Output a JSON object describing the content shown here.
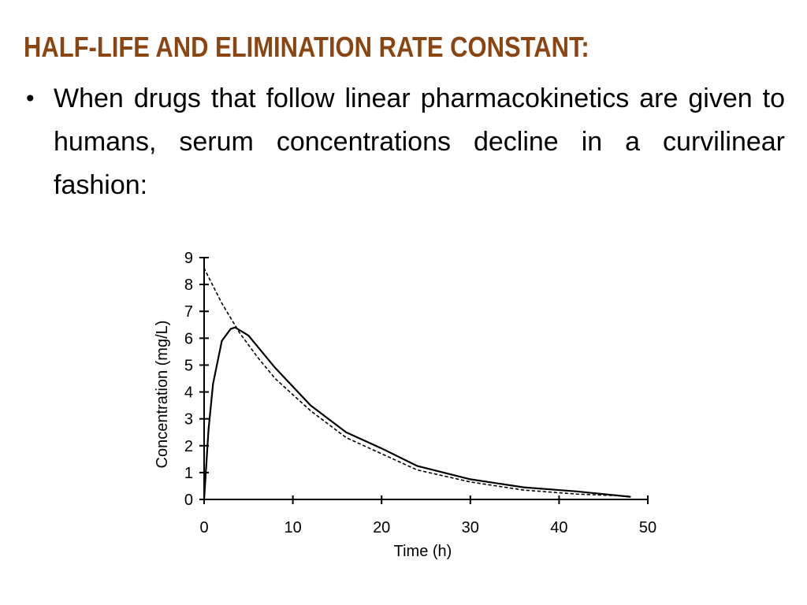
{
  "slide": {
    "title": "HALF-LIFE AND ELIMINATION RATE CONSTANT:",
    "bullet_symbol": "•",
    "bullet_text": "When drugs that follow linear pharmacokinetics are given to humans, serum concentrations decline in a curvilinear fashion:",
    "colors": {
      "title": "#8B4513",
      "text": "#000000",
      "background": "#ffffff"
    }
  },
  "chart_data": {
    "type": "line",
    "title": "",
    "xlabel": "Time (h)",
    "ylabel": "Concentration (mg/L)",
    "xlim": [
      0,
      50
    ],
    "ylim": [
      0,
      9
    ],
    "x_ticks": [
      0,
      10,
      20,
      30,
      40,
      50
    ],
    "x_tick_labels": [
      "0",
      "10",
      "20",
      "30",
      "40",
      "50"
    ],
    "y_ticks": [
      0,
      1,
      2,
      3,
      4,
      5,
      6,
      7,
      8,
      9
    ],
    "y_tick_labels": [
      "0",
      "1",
      "2",
      "3",
      "4",
      "5",
      "6",
      "7",
      "8",
      "9"
    ],
    "grid": false,
    "legend": "none",
    "series": [
      {
        "style": "solid",
        "x": [
          0,
          0.5,
          1,
          2,
          3,
          3.5,
          5,
          8,
          12,
          16,
          20,
          24,
          30,
          36,
          42,
          48
        ],
        "y": [
          0,
          2.6,
          4.3,
          5.9,
          6.35,
          6.4,
          6.1,
          4.9,
          3.5,
          2.5,
          1.9,
          1.25,
          0.75,
          0.45,
          0.3,
          0.1
        ]
      },
      {
        "style": "dashed",
        "x": [
          0,
          2,
          4,
          6,
          8,
          10,
          12,
          16,
          20,
          24,
          30,
          36,
          42,
          48
        ],
        "y": [
          8.6,
          7.3,
          6.2,
          5.3,
          4.5,
          3.9,
          3.3,
          2.3,
          1.7,
          1.1,
          0.65,
          0.35,
          0.2,
          0.12
        ]
      }
    ]
  }
}
